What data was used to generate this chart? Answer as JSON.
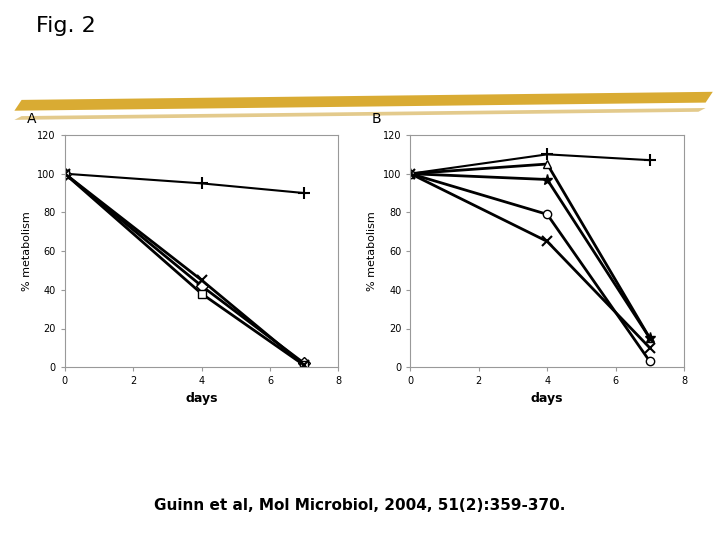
{
  "title": "Fig. 2",
  "citation": "Guinn et al, Mol Microbiol, 2004, 51(2):359-370.",
  "highlight_color": "#D4A017",
  "highlight_color2": "#C8961A",
  "panel_A": {
    "label": "A",
    "xlabel": "days",
    "ylabel": "% metabolism",
    "xlim": [
      0,
      8
    ],
    "ylim": [
      0,
      120
    ],
    "xticks": [
      0,
      2,
      4,
      6,
      8
    ],
    "yticks": [
      0,
      20,
      40,
      60,
      80,
      100,
      120
    ],
    "series": [
      {
        "x": [
          0,
          4,
          7
        ],
        "y": [
          100,
          95,
          90
        ],
        "marker_symbol": "+",
        "marker_size": 8,
        "lw": 1.5
      },
      {
        "x": [
          0,
          4,
          7
        ],
        "y": [
          100,
          42,
          2
        ],
        "marker_symbol": "D",
        "marker_size": 6,
        "lw": 2.0
      },
      {
        "x": [
          0,
          4,
          7
        ],
        "y": [
          100,
          38,
          1
        ],
        "marker_symbol": "s",
        "marker_size": 6,
        "lw": 2.0
      },
      {
        "x": [
          0,
          4,
          7
        ],
        "y": [
          100,
          45,
          1
        ],
        "marker_symbol": "x",
        "marker_size": 7,
        "lw": 2.0
      }
    ]
  },
  "panel_B": {
    "label": "B",
    "xlabel": "days",
    "ylabel": "% metabolism",
    "xlim": [
      0,
      8
    ],
    "ylim": [
      0,
      120
    ],
    "xticks": [
      0,
      2,
      4,
      6,
      8
    ],
    "yticks": [
      0,
      20,
      40,
      60,
      80,
      100,
      120
    ],
    "series": [
      {
        "x": [
          0,
          4,
          7
        ],
        "y": [
          100,
          110,
          107
        ],
        "marker_symbol": "+",
        "marker_size": 8,
        "lw": 1.5
      },
      {
        "x": [
          0,
          4,
          7
        ],
        "y": [
          100,
          105,
          15
        ],
        "marker_symbol": "^",
        "marker_size": 6,
        "lw": 2.0
      },
      {
        "x": [
          0,
          4,
          7
        ],
        "y": [
          100,
          97,
          15
        ],
        "marker_symbol": "*",
        "marker_size": 8,
        "lw": 2.0
      },
      {
        "x": [
          0,
          4,
          7
        ],
        "y": [
          100,
          79,
          3
        ],
        "marker_symbol": "o",
        "marker_size": 6,
        "lw": 2.0
      },
      {
        "x": [
          0,
          4,
          7
        ],
        "y": [
          100,
          65,
          10
        ],
        "marker_symbol": "x",
        "marker_size": 7,
        "lw": 2.0
      }
    ]
  }
}
